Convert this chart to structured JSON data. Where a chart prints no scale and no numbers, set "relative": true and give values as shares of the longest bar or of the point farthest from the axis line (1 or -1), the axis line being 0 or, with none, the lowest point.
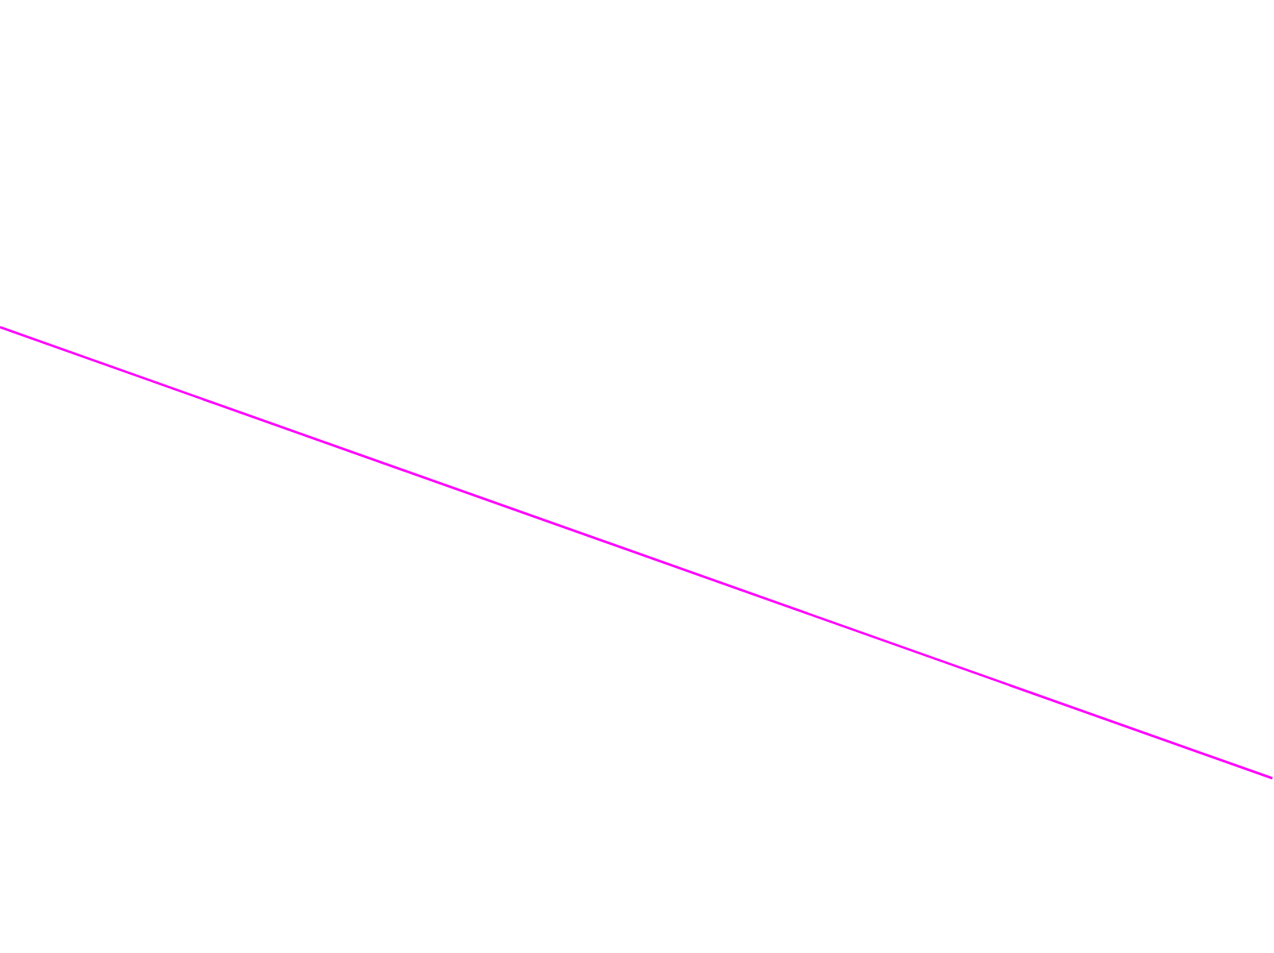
{
  "chart_data": {
    "type": "line",
    "categories": [
      null,
      null
    ],
    "relative": true,
    "series": [
      {
        "color": "#ff00ff",
        "values": [
          1,
          0
        ]
      }
    ]
  }
}
